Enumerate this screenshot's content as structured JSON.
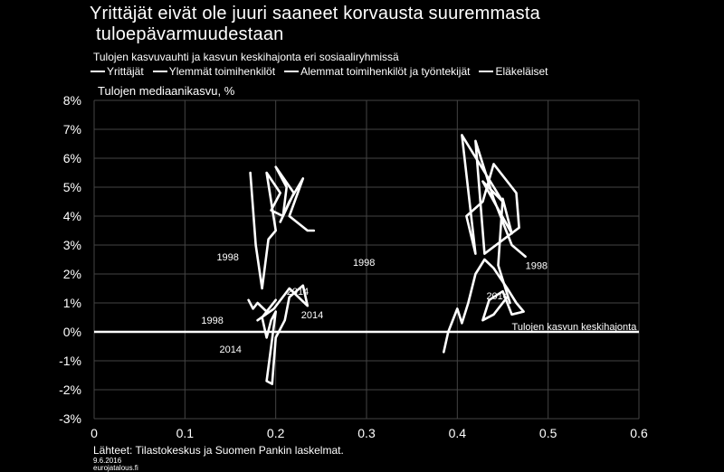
{
  "title_line1": "Yrittäjät eivät ole juuri saaneet korvausta suuremmasta",
  "title_line2": "tuloepävarmuudestaan",
  "subtitle": "Tulojen  kasvuvauhti  ja kasvun  keskihajonta  eri sosiaaliryhmissä",
  "ylabel": "Tulojen mediaanikasvu, %",
  "source": "Lähteet:  Tilastokeskus  ja Suomen Pankin laskelmat.",
  "date": "9.6.2016",
  "site": "eurojatalous.fi",
  "colors": {
    "background": "#000000",
    "series": "#ffffff"
  },
  "chart_data": {
    "type": "line",
    "title": "Yrittäjät eivät ole juuri saaneet korvausta suuremmasta tuloepävarmuudestaan",
    "subtitle": "Tulojen  kasvuvauhti  ja kasvun  keskihajonta  eri sosiaaliryhmissä",
    "ylabel": "Tulojen mediaanikasvu, %",
    "xlabel": "Tulojen kasvun keskihajonta",
    "xlim": [
      0,
      0.6
    ],
    "ylim": [
      -3,
      8
    ],
    "x_ticks": [
      "0",
      "0.1",
      "0.2",
      "0.3",
      "0.4",
      "0.5",
      "0.6"
    ],
    "y_ticks": [
      "-3%",
      "-2%",
      "-1%",
      "0%",
      "1%",
      "2%",
      "3%",
      "4%",
      "5%",
      "6%",
      "7%",
      "8%"
    ],
    "grid": true,
    "legend_position": "top",
    "legend": [
      "Yrittäjät",
      "Ylemmät toimihenkilöt",
      "Alemmat toimihenkilöt ja työntekijät",
      "Eläkeläiset"
    ],
    "series": [
      {
        "name": "Yrittäjät",
        "points": [
          [
            0.458,
            1.0
          ],
          [
            0.445,
            2.3
          ],
          [
            0.45,
            4.6
          ],
          [
            0.46,
            3.4
          ],
          [
            0.428,
            5.2
          ],
          [
            0.45,
            4.5
          ],
          [
            0.405,
            6.8
          ],
          [
            0.42,
            2.7
          ],
          [
            0.41,
            4.0
          ],
          [
            0.428,
            4.5
          ],
          [
            0.44,
            5.8
          ],
          [
            0.46,
            5.0
          ],
          [
            0.465,
            4.8
          ],
          [
            0.468,
            3.6
          ],
          [
            0.43,
            2.7
          ],
          [
            0.42,
            6.6
          ],
          [
            0.44,
            4.6
          ],
          [
            0.46,
            3.0
          ],
          [
            0.475,
            2.6
          ]
        ]
      },
      {
        "name": "Ylemmät toimihenkilöt",
        "points": [
          [
            0.172,
            5.5
          ],
          [
            0.178,
            3.0
          ],
          [
            0.185,
            1.5
          ],
          [
            0.192,
            3.2
          ],
          [
            0.2,
            3.5
          ],
          [
            0.19,
            5.5
          ],
          [
            0.205,
            4.8
          ],
          [
            0.195,
            4.2
          ],
          [
            0.208,
            4.0
          ],
          [
            0.212,
            5.0
          ],
          [
            0.2,
            5.7
          ],
          [
            0.22,
            4.8
          ],
          [
            0.205,
            3.8
          ],
          [
            0.215,
            4.5
          ],
          [
            0.23,
            5.3
          ],
          [
            0.215,
            4.0
          ],
          [
            0.235,
            3.5
          ],
          [
            0.242,
            3.5
          ]
        ]
      },
      {
        "name": "Alemmat toimihenkilöt ja työntekijät",
        "points": [
          [
            0.17,
            1.1
          ],
          [
            0.175,
            0.8
          ],
          [
            0.18,
            1.0
          ],
          [
            0.19,
            0.7
          ],
          [
            0.2,
            1.1
          ],
          [
            0.185,
            0.5
          ],
          [
            0.19,
            -0.2
          ],
          [
            0.195,
            0.4
          ],
          [
            0.2,
            0.7
          ],
          [
            0.19,
            -1.7
          ],
          [
            0.196,
            -1.8
          ],
          [
            0.2,
            -0.2
          ],
          [
            0.21,
            0.4
          ],
          [
            0.215,
            1.2
          ],
          [
            0.23,
            1.6
          ],
          [
            0.235,
            0.9
          ],
          [
            0.215,
            1.5
          ],
          [
            0.198,
            0.8
          ],
          [
            0.18,
            0.4
          ]
        ]
      },
      {
        "name": "Eläkeläiset",
        "points": [
          [
            0.385,
            -0.7
          ],
          [
            0.39,
            0.0
          ],
          [
            0.4,
            0.8
          ],
          [
            0.405,
            0.3
          ],
          [
            0.412,
            1.0
          ],
          [
            0.42,
            2.0
          ],
          [
            0.43,
            2.5
          ],
          [
            0.44,
            2.2
          ],
          [
            0.455,
            1.5
          ],
          [
            0.465,
            1.0
          ],
          [
            0.473,
            0.7
          ],
          [
            0.46,
            0.6
          ],
          [
            0.45,
            1.4
          ],
          [
            0.435,
            1.1
          ],
          [
            0.428,
            0.4
          ],
          [
            0.44,
            0.6
          ],
          [
            0.455,
            1.2
          ]
        ]
      }
    ],
    "annotations": [
      {
        "text": "1998",
        "x": 0.135,
        "y": 2.6
      },
      {
        "text": "1998",
        "x": 0.285,
        "y": 2.4
      },
      {
        "text": "2014",
        "x": 0.212,
        "y": 1.4
      },
      {
        "text": "2014",
        "x": 0.228,
        "y": 0.6
      },
      {
        "text": "1998",
        "x": 0.118,
        "y": 0.4
      },
      {
        "text": "2014",
        "x": 0.138,
        "y": -0.6
      },
      {
        "text": "1998",
        "x": 0.475,
        "y": 2.3
      },
      {
        "text": "2014",
        "x": 0.432,
        "y": 1.25
      },
      {
        "text": "Tulojen kasvun keskihajonta",
        "x": 0.46,
        "y": 0.18
      }
    ]
  }
}
